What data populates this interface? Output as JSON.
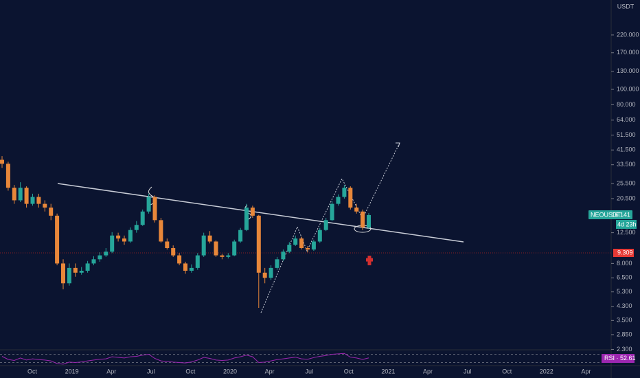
{
  "chart_data": {
    "type": "candlestick",
    "symbol_tag": "NEOUSDT",
    "last_price": "16.141",
    "countdown": "4d 23h",
    "level_price": "9.309",
    "currency": "USDT",
    "rsi_label": "RSI · 52.61",
    "up_color": "#26a69a",
    "down_color": "#e8873a",
    "yticks": [
      {
        "value": 220,
        "label": "220.000"
      },
      {
        "value": 170,
        "label": "170.000"
      },
      {
        "value": 130,
        "label": "130.000"
      },
      {
        "value": 100,
        "label": "100.000"
      },
      {
        "value": 80,
        "label": "80.000"
      },
      {
        "value": 64,
        "label": "64.000"
      },
      {
        "value": 51.5,
        "label": "51.500"
      },
      {
        "value": 41.5,
        "label": "41.500"
      },
      {
        "value": 33.5,
        "label": "33.500"
      },
      {
        "value": 25.5,
        "label": "25.500"
      },
      {
        "value": 20.5,
        "label": "20.500"
      },
      {
        "value": 12.5,
        "label": "12.500"
      },
      {
        "value": 8,
        "label": "8.000"
      },
      {
        "value": 6.5,
        "label": "6.500"
      },
      {
        "value": 5.3,
        "label": "5.300"
      },
      {
        "value": 4.3,
        "label": "4.300"
      },
      {
        "value": 3.5,
        "label": "3.500"
      },
      {
        "value": 2.85,
        "label": "2.850"
      },
      {
        "value": 2.3,
        "label": "2.300"
      }
    ],
    "log_scale": true,
    "time_labels": [
      "Oct",
      "2019",
      "Apr",
      "Jul",
      "Oct",
      "2020",
      "Apr",
      "Jul",
      "Oct",
      "2021",
      "Apr",
      "Jul",
      "Oct",
      "2022",
      "Apr"
    ],
    "candles": [
      [
        36,
        38,
        32,
        34
      ],
      [
        34,
        35,
        23,
        24
      ],
      [
        24,
        25,
        19,
        20
      ],
      [
        20,
        26,
        19.5,
        24
      ],
      [
        24,
        24.5,
        18,
        19
      ],
      [
        19,
        22,
        18.5,
        21
      ],
      [
        21,
        22,
        18,
        19
      ],
      [
        19,
        20,
        17,
        18
      ],
      [
        18,
        19,
        15,
        16
      ],
      [
        16,
        16.5,
        7.8,
        8
      ],
      [
        8,
        8.5,
        5.5,
        6
      ],
      [
        6,
        8,
        5.8,
        7.5
      ],
      [
        7.5,
        8,
        6.6,
        7
      ],
      [
        7,
        7.6,
        6.8,
        7.2
      ],
      [
        7.2,
        8.3,
        7,
        8
      ],
      [
        8,
        8.9,
        7.8,
        8.5
      ],
      [
        8.5,
        9.4,
        8.2,
        9
      ],
      [
        9,
        10,
        8.8,
        9.5
      ],
      [
        9.5,
        12.6,
        9.3,
        12
      ],
      [
        12,
        12.5,
        11,
        11.5
      ],
      [
        11.5,
        12,
        10.5,
        11
      ],
      [
        11,
        13.5,
        10.8,
        13
      ],
      [
        13,
        14.8,
        12.5,
        14
      ],
      [
        14,
        17.5,
        13.8,
        17
      ],
      [
        17,
        22,
        16.5,
        21
      ],
      [
        21,
        21.5,
        14.5,
        15
      ],
      [
        15,
        15.5,
        10.8,
        11
      ],
      [
        11,
        11.5,
        9.8,
        10
      ],
      [
        10,
        10.4,
        8.8,
        9
      ],
      [
        9,
        9.3,
        7.8,
        8
      ],
      [
        8,
        8.2,
        6.9,
        7.2
      ],
      [
        7.2,
        7.9,
        7,
        7.5
      ],
      [
        7.5,
        9.3,
        7.3,
        9
      ],
      [
        9,
        12.5,
        8.8,
        12
      ],
      [
        12,
        12.8,
        10.7,
        11
      ],
      [
        11,
        11.2,
        8.8,
        9
      ],
      [
        9,
        9.2,
        8.5,
        8.8
      ],
      [
        8.8,
        9.3,
        8.6,
        9
      ],
      [
        9,
        11.3,
        8.9,
        11
      ],
      [
        11,
        13.4,
        10.8,
        13
      ],
      [
        13,
        19,
        12.8,
        18
      ],
      [
        18,
        18.5,
        15.5,
        16
      ],
      [
        16,
        16.2,
        4.2,
        7
      ],
      [
        7,
        7.5,
        6,
        6.5
      ],
      [
        6.5,
        7.8,
        6.3,
        7.5
      ],
      [
        7.5,
        8.8,
        7.3,
        8.5
      ],
      [
        8.5,
        9.8,
        8.3,
        9.5
      ],
      [
        9.5,
        10.9,
        9.3,
        10.5
      ],
      [
        10.5,
        12,
        10.3,
        11.5
      ],
      [
        11.5,
        11.8,
        9.8,
        10
      ],
      [
        10,
        10.3,
        9.4,
        9.8
      ],
      [
        9.8,
        11.3,
        9.6,
        11
      ],
      [
        11,
        13.4,
        10.8,
        13
      ],
      [
        13,
        15.5,
        12.8,
        15
      ],
      [
        15,
        19.8,
        14.8,
        19
      ],
      [
        19,
        21.8,
        18.5,
        21
      ],
      [
        21,
        25,
        20.5,
        24
      ],
      [
        24,
        24.5,
        17.5,
        18
      ],
      [
        18,
        19,
        16.5,
        17
      ],
      [
        17,
        17.5,
        13,
        13.5
      ],
      [
        13.5,
        16.6,
        13.2,
        16.141
      ]
    ],
    "rsi": [
      60,
      45,
      40,
      52,
      42,
      48,
      44,
      42,
      38,
      25,
      22,
      32,
      30,
      33,
      38,
      42,
      46,
      48,
      58,
      55,
      52,
      58,
      60,
      66,
      70,
      50,
      38,
      35,
      32,
      30,
      28,
      33,
      42,
      55,
      50,
      42,
      40,
      42,
      52,
      58,
      66,
      58,
      30,
      32,
      38,
      44,
      48,
      52,
      56,
      48,
      46,
      54,
      60,
      64,
      70,
      72,
      74,
      56,
      52,
      45,
      52.61
    ]
  }
}
